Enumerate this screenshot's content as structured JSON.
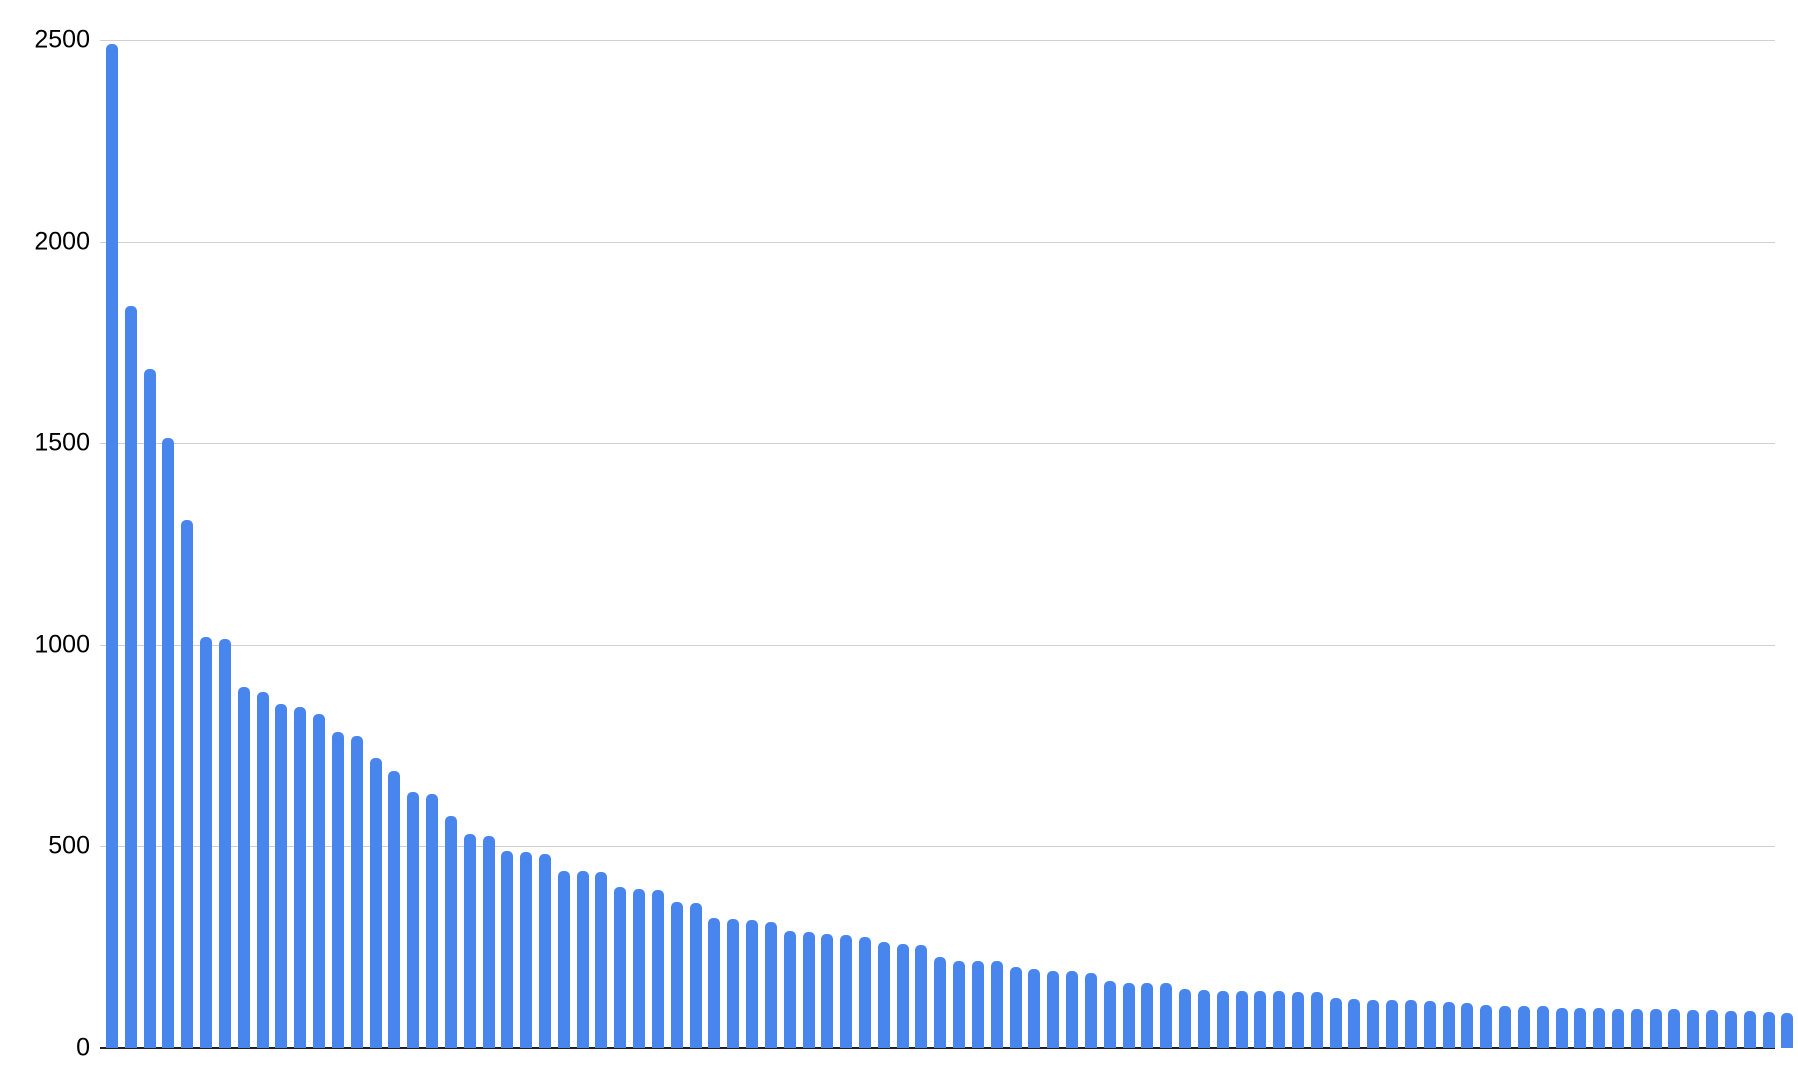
{
  "chart_data": {
    "type": "bar",
    "title": "",
    "xlabel": "",
    "ylabel": "",
    "x_tick_labels": [],
    "y_tick_labels": [
      "0",
      "500",
      "1000",
      "1500",
      "2000",
      "2500"
    ],
    "yticks": [
      0,
      500,
      1000,
      1500,
      2000,
      2500
    ],
    "ylim": [
      0,
      2500
    ],
    "grid": "horizontal",
    "legend": "none",
    "values": [
      2490,
      1840,
      1685,
      1513,
      1310,
      1020,
      1015,
      896,
      884,
      853,
      847,
      828,
      785,
      774,
      719,
      686,
      634,
      630,
      576,
      530,
      527,
      489,
      485,
      481,
      440,
      439,
      437,
      400,
      394,
      393,
      363,
      359,
      322,
      320,
      318,
      313,
      290,
      287,
      282,
      280,
      276,
      262,
      257,
      255,
      226,
      217,
      216,
      216,
      202,
      196,
      192,
      191,
      186,
      165,
      162,
      161,
      161,
      147,
      143,
      142,
      142,
      141,
      141,
      139,
      138,
      123,
      122,
      119,
      119,
      118,
      117,
      113,
      112,
      106,
      105,
      104,
      103,
      100,
      99,
      99,
      98,
      98,
      98,
      97,
      95,
      94,
      92,
      91,
      90,
      86,
      85,
      85,
      79,
      79
    ],
    "colors": {
      "bar": "#4885ed",
      "gridline": "#d0d0d0",
      "axis_line": "#212121",
      "tick_label": "#000000",
      "background": "#ffffff"
    }
  }
}
